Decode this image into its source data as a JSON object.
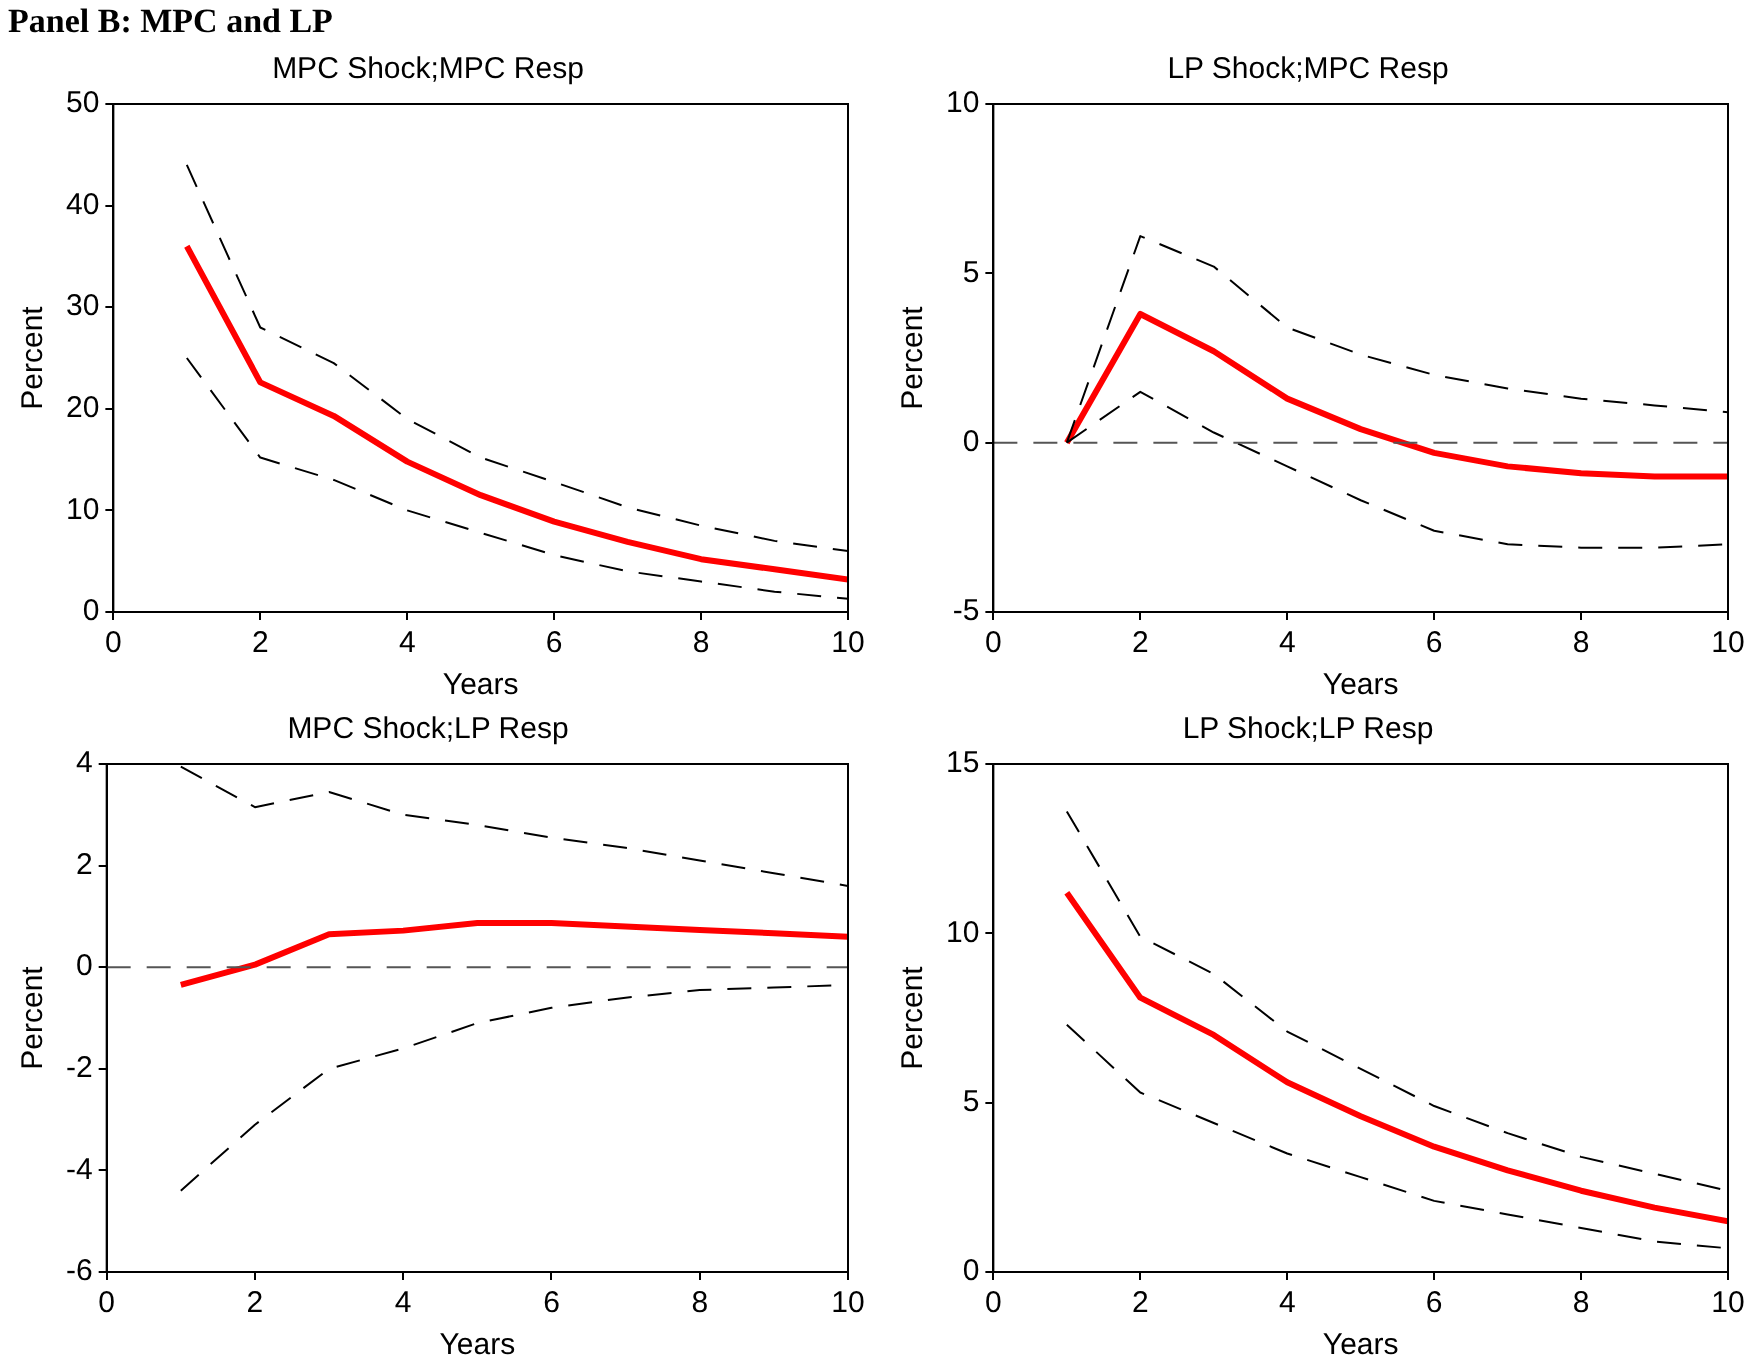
{
  "chart_data": [
    {
      "type": "line",
      "title": "MPC Shock;MPC Resp",
      "xlabel": "Years",
      "ylabel": "Percent",
      "annotations": [
        "Panel B: MPC and LP"
      ],
      "x": [
        1,
        2,
        3,
        4,
        5,
        6,
        7,
        8,
        9,
        10
      ],
      "xlim": [
        0,
        10
      ],
      "xticks": [
        0,
        2,
        4,
        6,
        8,
        10
      ],
      "ylim": [
        0,
        50
      ],
      "yticks": [
        0,
        10,
        20,
        30,
        40,
        50
      ],
      "grid": false,
      "legend": false,
      "marker": "none",
      "series": [
        {
          "color": "#000000",
          "line_style": "dashed",
          "values": [
            44,
            28,
            24.5,
            19,
            15.2,
            12.8,
            10.3,
            8.5,
            7,
            6
          ]
        },
        {
          "color": "#000000",
          "line_style": "dashed",
          "values": [
            25,
            15.2,
            13,
            10,
            7.8,
            5.6,
            4,
            3,
            2,
            1.3
          ]
        },
        {
          "color": "#ff0000",
          "line_style": "solid",
          "values": [
            36,
            22.6,
            19.3,
            14.8,
            11.5,
            8.9,
            6.9,
            5.2,
            4.2,
            3.2
          ]
        }
      ]
    },
    {
      "type": "line",
      "title": "LP Shock;MPC Resp",
      "xlabel": "Years",
      "ylabel": "Percent",
      "x": [
        1,
        2,
        3,
        4,
        5,
        6,
        7,
        8,
        9,
        10
      ],
      "xlim": [
        0,
        10
      ],
      "xticks": [
        0,
        2,
        4,
        6,
        8,
        10
      ],
      "ylim": [
        -5,
        10
      ],
      "yticks": [
        -5,
        0,
        5,
        10
      ],
      "grid": false,
      "legend": false,
      "marker": "none",
      "ref_lines": [
        {
          "axis": "y",
          "value": 0,
          "color": "#555555",
          "line_style": "dashed"
        }
      ],
      "series": [
        {
          "color": "#000000",
          "line_style": "dashed",
          "values": [
            0,
            6.1,
            5.2,
            3.4,
            2.6,
            2.0,
            1.6,
            1.3,
            1.1,
            0.9
          ]
        },
        {
          "color": "#000000",
          "line_style": "dashed",
          "values": [
            0,
            1.5,
            0.3,
            -0.7,
            -1.7,
            -2.6,
            -3.0,
            -3.1,
            -3.1,
            -3.0
          ]
        },
        {
          "color": "#ff0000",
          "line_style": "solid",
          "values": [
            0,
            3.8,
            2.7,
            1.3,
            0.4,
            -0.3,
            -0.7,
            -0.9,
            -1,
            -1
          ]
        }
      ]
    },
    {
      "type": "line",
      "title": "MPC Shock;LP Resp",
      "xlabel": "Years",
      "ylabel": "Percent",
      "x": [
        1,
        2,
        3,
        4,
        5,
        6,
        7,
        8,
        9,
        10
      ],
      "xlim": [
        0,
        10
      ],
      "xticks": [
        0,
        2,
        4,
        6,
        8,
        10
      ],
      "ylim": [
        -6,
        4
      ],
      "yticks": [
        -6,
        -4,
        -2,
        0,
        2,
        4
      ],
      "grid": false,
      "legend": false,
      "marker": "none",
      "ref_lines": [
        {
          "axis": "y",
          "value": 0,
          "color": "#555555",
          "line_style": "dashed"
        }
      ],
      "series": [
        {
          "color": "#000000",
          "line_style": "dashed",
          "values": [
            3.95,
            3.15,
            3.45,
            3.0,
            2.8,
            2.55,
            2.35,
            2.1,
            1.85,
            1.6
          ]
        },
        {
          "color": "#000000",
          "line_style": "dashed",
          "values": [
            -4.4,
            -3.1,
            -2.0,
            -1.6,
            -1.1,
            -0.8,
            -0.6,
            -0.45,
            -0.4,
            -0.35
          ]
        },
        {
          "color": "#ff0000",
          "line_style": "solid",
          "values": [
            -0.35,
            0.05,
            0.65,
            0.72,
            0.87,
            0.87,
            0.8,
            0.73,
            0.67,
            0.6
          ]
        }
      ]
    },
    {
      "type": "line",
      "title": "LP Shock;LP Resp",
      "xlabel": "Years",
      "ylabel": "Percent",
      "x": [
        1,
        2,
        3,
        4,
        5,
        6,
        7,
        8,
        9,
        10
      ],
      "xlim": [
        0,
        10
      ],
      "xticks": [
        0,
        2,
        4,
        6,
        8,
        10
      ],
      "ylim": [
        0,
        15
      ],
      "yticks": [
        0,
        5,
        10,
        15
      ],
      "grid": false,
      "legend": false,
      "marker": "none",
      "series": [
        {
          "color": "#000000",
          "line_style": "dashed",
          "values": [
            13.6,
            9.9,
            8.8,
            7.1,
            6.0,
            4.9,
            4.1,
            3.4,
            2.9,
            2.4
          ]
        },
        {
          "color": "#000000",
          "line_style": "dashed",
          "values": [
            7.3,
            5.3,
            4.4,
            3.5,
            2.8,
            2.1,
            1.7,
            1.3,
            0.9,
            0.7
          ]
        },
        {
          "color": "#ff0000",
          "line_style": "solid",
          "values": [
            11.2,
            8.1,
            7.0,
            5.6,
            4.6,
            3.7,
            3.0,
            2.4,
            1.9,
            1.5
          ]
        }
      ]
    }
  ]
}
